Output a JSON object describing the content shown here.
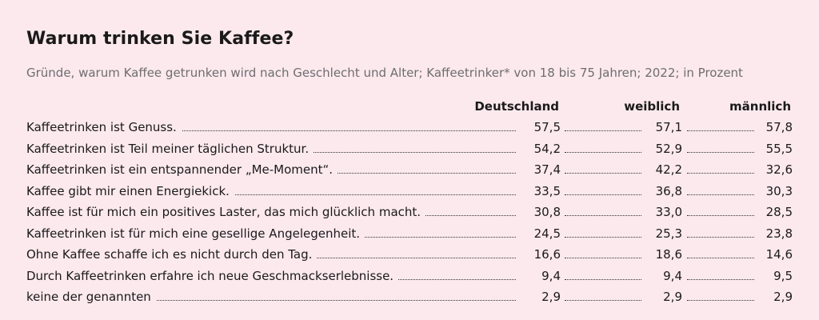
{
  "title": "Warum trinken Sie Kaffee?",
  "subtitle": "Gründe, warum Kaffee getrunken wird nach Geschlecht und Alter; Kaffeetrinker* von 18 bis 75 Jahren; 2022; in Prozent",
  "chart_data": {
    "type": "table",
    "title": "Warum trinken Sie Kaffee?",
    "subtitle": "Gründe, warum Kaffee getrunken wird nach Geschlecht und Alter; Kaffeetrinker* von 18 bis 75 Jahren; 2022; in Prozent",
    "columns": [
      "Deutschland",
      "weiblich",
      "männlich"
    ],
    "rows": [
      {
        "label": "Kaffeetrinken ist Genuss.",
        "values": [
          "57,5",
          "57,1",
          "57,8"
        ]
      },
      {
        "label": "Kaffeetrinken ist Teil meiner täglichen Struktur.",
        "values": [
          "54,2",
          "52,9",
          "55,5"
        ]
      },
      {
        "label": "Kaffeetrinken ist ein entspannender „Me-Moment“.",
        "values": [
          "37,4",
          "42,2",
          "32,6"
        ]
      },
      {
        "label": "Kaffee gibt mir einen Energiekick.",
        "values": [
          "33,5",
          "36,8",
          "30,3"
        ]
      },
      {
        "label": "Kaffee ist für mich ein positives Laster, das mich glücklich macht.",
        "values": [
          "30,8",
          "33,0",
          "28,5"
        ]
      },
      {
        "label": "Kaffeetrinken ist für mich eine gesellige Angelegenheit.",
        "values": [
          "24,5",
          "25,3",
          "23,8"
        ]
      },
      {
        "label": "Ohne Kaffee schaffe ich es nicht durch den Tag.",
        "values": [
          "16,6",
          "18,6",
          "14,6"
        ]
      },
      {
        "label": "Durch Kaffeetrinken erfahre ich neue Geschmackserlebnisse.",
        "values": [
          "9,4",
          "9,4",
          "9,5"
        ]
      },
      {
        "label": "keine der genannten",
        "values": [
          "2,9",
          "2,9",
          "2,9"
        ]
      }
    ]
  }
}
